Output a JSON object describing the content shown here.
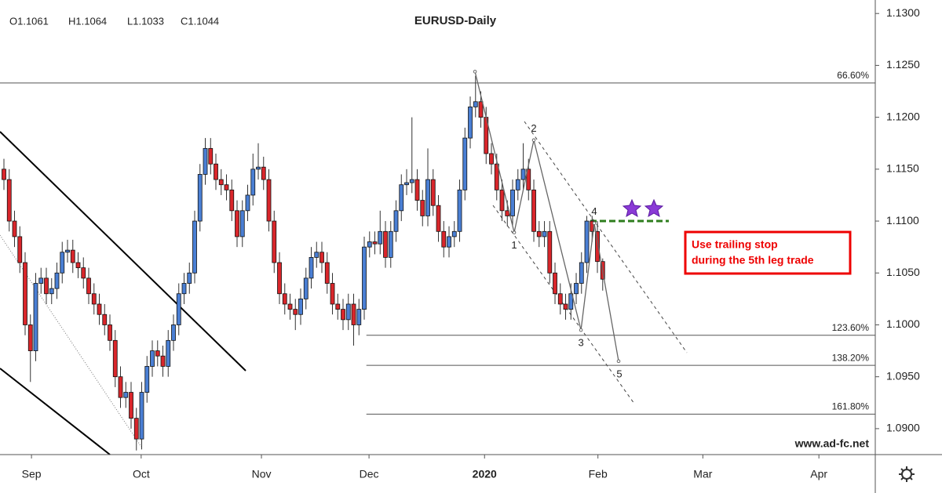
{
  "chart_data": {
    "type": "candlestick",
    "title": "EURUSD-Daily",
    "header": [
      "O1.1061",
      "H1.1064",
      "L1.1033",
      "C1.1044"
    ],
    "up_color": "#4a7fd4",
    "down_color": "#d9262b",
    "xlim": [
      -0.741,
      164.44
    ],
    "ylim": [
      1.0875,
      1.1313
    ],
    "yticks": [
      {
        "value": 1.09,
        "label": "1.0900"
      },
      {
        "value": 1.095,
        "label": "1.0950"
      },
      {
        "value": 1.1,
        "label": "1.1000"
      },
      {
        "value": 1.105,
        "label": "1.1050"
      },
      {
        "value": 1.11,
        "label": "1.1100"
      },
      {
        "value": 1.115,
        "label": "1.1150"
      },
      {
        "value": 1.12,
        "label": "1.1200"
      },
      {
        "value": 1.125,
        "label": "1.1250"
      },
      {
        "value": 1.13,
        "label": "1.1300"
      }
    ],
    "xticks": [
      {
        "value": 5.2,
        "label": "Sep"
      },
      {
        "value": 25.9,
        "label": "Oct"
      },
      {
        "value": 48.6,
        "label": "Nov"
      },
      {
        "value": 68.9,
        "label": "Dec"
      },
      {
        "value": 90.7,
        "label": "2020"
      },
      {
        "value": 112.1,
        "label": "Feb"
      },
      {
        "value": 131.9,
        "label": "Mar"
      },
      {
        "value": 153.8,
        "label": "Apr"
      }
    ],
    "open": [
      1.115,
      1.114,
      1.11,
      1.1085,
      1.106,
      1.1,
      1.0975,
      1.104,
      1.1045,
      1.103,
      1.1035,
      1.105,
      1.107,
      1.1072,
      1.106,
      1.1055,
      1.1045,
      1.103,
      1.102,
      1.101,
      1.1,
      1.0985,
      1.095,
      1.093,
      1.0935,
      1.091,
      1.089,
      1.0935,
      1.096,
      1.0975,
      1.097,
      1.096,
      1.0985,
      1.1,
      1.103,
      1.104,
      1.105,
      1.11,
      1.1145,
      1.117,
      1.1155,
      1.114,
      1.1135,
      1.113,
      1.111,
      1.1085,
      1.111,
      1.1125,
      1.115,
      1.1152,
      1.114,
      1.11,
      1.106,
      1.103,
      1.102,
      1.1015,
      1.101,
      1.1025,
      1.1045,
      1.1065,
      1.107,
      1.106,
      1.104,
      1.102,
      1.1015,
      1.1005,
      1.102,
      1.1,
      1.1015,
      1.1075,
      1.108,
      1.1078,
      1.109,
      1.1065,
      1.109,
      1.111,
      1.1135,
      1.1137,
      1.114,
      1.112,
      1.1105,
      1.114,
      1.1115,
      1.109,
      1.1075,
      1.1085,
      1.109,
      1.113,
      1.118,
      1.121,
      1.1215,
      1.12,
      1.1165,
      1.1155,
      1.113,
      1.111,
      1.1105,
      1.113,
      1.114,
      1.115,
      1.113,
      1.109,
      1.1085,
      1.109,
      1.105,
      1.103,
      1.102,
      1.1015,
      1.103,
      1.104,
      1.106,
      1.11,
      1.109,
      1.1061
    ],
    "high": [
      1.116,
      1.115,
      1.111,
      1.1095,
      1.107,
      1.101,
      1.105,
      1.1055,
      1.1055,
      1.1045,
      1.106,
      1.108,
      1.1082,
      1.1082,
      1.107,
      1.1065,
      1.1055,
      1.104,
      1.103,
      1.102,
      1.101,
      1.0995,
      1.096,
      1.0945,
      1.0945,
      1.092,
      1.0945,
      1.097,
      1.0985,
      1.0985,
      1.098,
      1.0995,
      1.101,
      1.104,
      1.105,
      1.106,
      1.111,
      1.1155,
      1.118,
      1.118,
      1.1165,
      1.115,
      1.1145,
      1.114,
      1.112,
      1.112,
      1.1135,
      1.1165,
      1.1175,
      1.1162,
      1.115,
      1.111,
      1.107,
      1.104,
      1.103,
      1.1025,
      1.1035,
      1.1055,
      1.1075,
      1.108,
      1.108,
      1.107,
      1.105,
      1.103,
      1.1025,
      1.103,
      1.103,
      1.1025,
      1.1085,
      1.109,
      1.109,
      1.111,
      1.11,
      1.11,
      1.112,
      1.1145,
      1.115,
      1.12,
      1.115,
      1.113,
      1.117,
      1.115,
      1.1125,
      1.11,
      1.1095,
      1.11,
      1.114,
      1.119,
      1.122,
      1.124,
      1.1225,
      1.121,
      1.1175,
      1.1165,
      1.114,
      1.112,
      1.114,
      1.115,
      1.1175,
      1.116,
      1.114,
      1.11,
      1.11,
      1.11,
      1.106,
      1.104,
      1.103,
      1.104,
      1.105,
      1.107,
      1.1105,
      1.1105,
      1.11,
      1.1064
    ],
    "low": [
      1.113,
      1.109,
      1.1075,
      1.105,
      1.099,
      1.0945,
      1.0965,
      1.103,
      1.102,
      1.102,
      1.1025,
      1.104,
      1.106,
      1.105,
      1.1045,
      1.1035,
      1.102,
      1.101,
      1.1,
      1.099,
      1.0975,
      1.094,
      1.092,
      1.092,
      1.09,
      1.0879,
      1.088,
      1.0925,
      1.095,
      1.096,
      1.095,
      1.095,
      1.0975,
      1.099,
      1.102,
      1.103,
      1.104,
      1.109,
      1.1135,
      1.1145,
      1.113,
      1.1125,
      1.112,
      1.11,
      1.1075,
      1.1075,
      1.11,
      1.1115,
      1.114,
      1.113,
      1.109,
      1.105,
      1.102,
      1.101,
      1.1005,
      1.0995,
      1.1,
      1.1015,
      1.1035,
      1.1055,
      1.105,
      1.103,
      1.101,
      1.1005,
      1.0995,
      1.0995,
      1.098,
      1.099,
      1.1005,
      1.1065,
      1.1068,
      1.1068,
      1.1055,
      1.1055,
      1.108,
      1.11,
      1.1125,
      1.1127,
      1.111,
      1.1095,
      1.1095,
      1.1105,
      1.108,
      1.1065,
      1.1065,
      1.1075,
      1.108,
      1.112,
      1.117,
      1.12,
      1.119,
      1.1155,
      1.1145,
      1.112,
      1.11,
      1.1095,
      1.1095,
      1.112,
      1.113,
      1.112,
      1.108,
      1.1075,
      1.1075,
      1.104,
      1.102,
      1.101,
      1.1005,
      1.1005,
      1.102,
      1.103,
      1.105,
      1.108,
      1.105,
      1.1033
    ],
    "close": [
      1.114,
      1.11,
      1.1085,
      1.106,
      1.1,
      1.0975,
      1.104,
      1.1045,
      1.103,
      1.1035,
      1.105,
      1.107,
      1.1072,
      1.106,
      1.1055,
      1.1045,
      1.103,
      1.102,
      1.101,
      1.1,
      1.0985,
      1.095,
      1.093,
      1.0935,
      1.091,
      1.089,
      1.0935,
      1.096,
      1.0975,
      1.097,
      1.096,
      1.0985,
      1.1,
      1.103,
      1.104,
      1.105,
      1.11,
      1.1145,
      1.117,
      1.1155,
      1.114,
      1.1135,
      1.113,
      1.111,
      1.1085,
      1.111,
      1.1125,
      1.115,
      1.1152,
      1.114,
      1.11,
      1.106,
      1.103,
      1.102,
      1.1015,
      1.101,
      1.1025,
      1.1045,
      1.1065,
      1.107,
      1.106,
      1.104,
      1.102,
      1.1015,
      1.1005,
      1.102,
      1.1,
      1.1015,
      1.1075,
      1.108,
      1.1078,
      1.109,
      1.1065,
      1.109,
      1.111,
      1.1135,
      1.1137,
      1.114,
      1.112,
      1.1105,
      1.114,
      1.1115,
      1.109,
      1.1075,
      1.1085,
      1.109,
      1.113,
      1.118,
      1.121,
      1.1215,
      1.12,
      1.1165,
      1.1155,
      1.113,
      1.111,
      1.1105,
      1.113,
      1.114,
      1.115,
      1.113,
      1.109,
      1.1085,
      1.109,
      1.105,
      1.103,
      1.102,
      1.1015,
      1.103,
      1.104,
      1.106,
      1.11,
      1.109,
      1.1061,
      1.1044
    ],
    "levels": [
      {
        "label": "66.60%",
        "price": 1.1233,
        "from": -0.741
      },
      {
        "label": "123.60%",
        "price": 1.099,
        "from": 68.4
      },
      {
        "label": "138.20%",
        "price": 1.0961,
        "from": 68.4
      },
      {
        "label": "161.80%",
        "price": 1.0914,
        "from": 68.4
      }
    ],
    "waves": [
      {
        "label": null,
        "x": 88.9,
        "y": 1.1244
      },
      {
        "label": "1",
        "x": 96.3,
        "y": 1.1089
      },
      {
        "label": "2",
        "x": 100.0,
        "y": 1.1178
      },
      {
        "label": "3",
        "x": 108.9,
        "y": 1.0995
      },
      {
        "label": "4",
        "x": 111.4,
        "y": 1.1098
      },
      {
        "label": "5",
        "x": 116.0,
        "y": 1.0965
      }
    ],
    "note": [
      "Use trailing stop",
      "during the 5th leg trade"
    ],
    "website": "www.ad-fc.net"
  }
}
